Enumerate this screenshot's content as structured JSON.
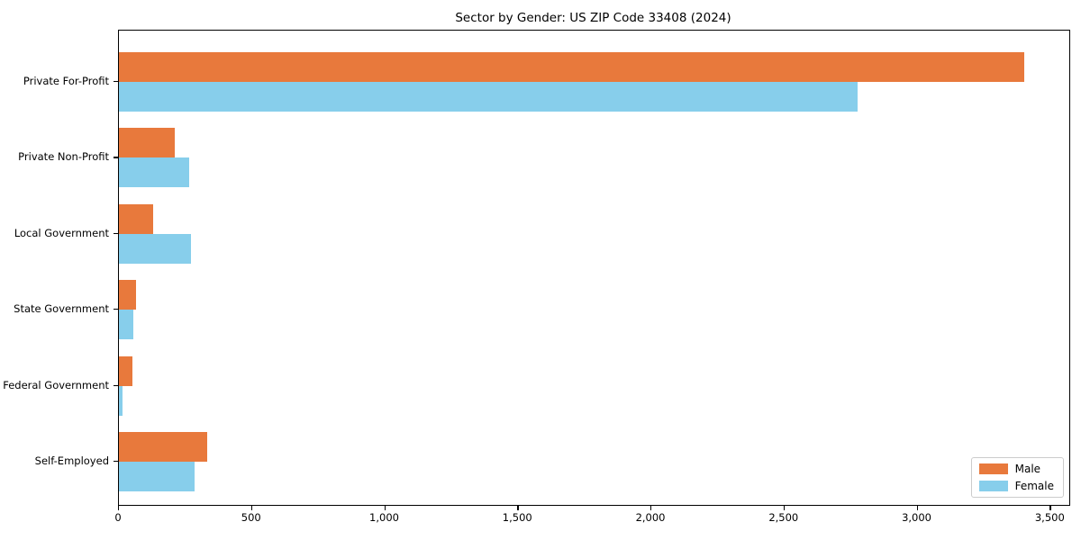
{
  "chart_data": {
    "type": "bar",
    "orientation": "horizontal",
    "title": "Sector by Gender: US ZIP Code 33408 (2024)",
    "categories": [
      "Private For-Profit",
      "Private Non-Profit",
      "Local Government",
      "State Government",
      "Federal Government",
      "Self-Employed"
    ],
    "series": [
      {
        "name": "Male",
        "color": "#E8793C",
        "values": [
          3400,
          210,
          130,
          65,
          50,
          330
        ]
      },
      {
        "name": "Female",
        "color": "#87CEEB",
        "values": [
          2775,
          265,
          270,
          55,
          15,
          285
        ]
      }
    ],
    "xlabel": "",
    "ylabel": "",
    "xlim": [
      0,
      3570
    ],
    "x_ticks": [
      0,
      500,
      1000,
      1500,
      2000,
      2500,
      3000,
      3500
    ],
    "x_tick_labels": [
      "0",
      "500",
      "1,000",
      "1,500",
      "2,000",
      "2,500",
      "3,000",
      "3,500"
    ],
    "grid": false,
    "legend_position": "lower right"
  }
}
